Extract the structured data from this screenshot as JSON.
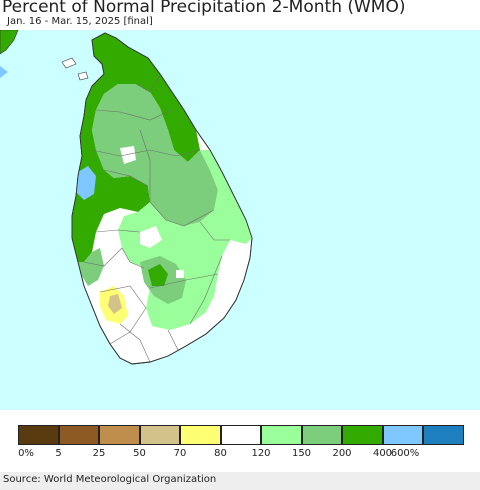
{
  "header": {
    "title": "Percent of Normal Precipitation 2-Month (WMO)",
    "subtitle": "Jan. 16 - Mar. 15, 2025 [final]"
  },
  "colors": {
    "ocean": "#ccffff",
    "land": "#ffffff",
    "boundary": "#6e6e6e"
  },
  "legend": {
    "colors": [
      "#5a3b0f",
      "#8c5a22",
      "#c08e4c",
      "#d3c28a",
      "#ffff73",
      "#ffffff",
      "#9aff9a",
      "#7ccd7c",
      "#33aa00",
      "#7ec8ff",
      "#1e7fbf"
    ],
    "labels": [
      "0%",
      "5",
      "25",
      "50",
      "70",
      "80",
      "120",
      "150",
      "200",
      "400",
      "600%"
    ]
  },
  "footer": {
    "source": "Source: World Meteorological Organization"
  }
}
